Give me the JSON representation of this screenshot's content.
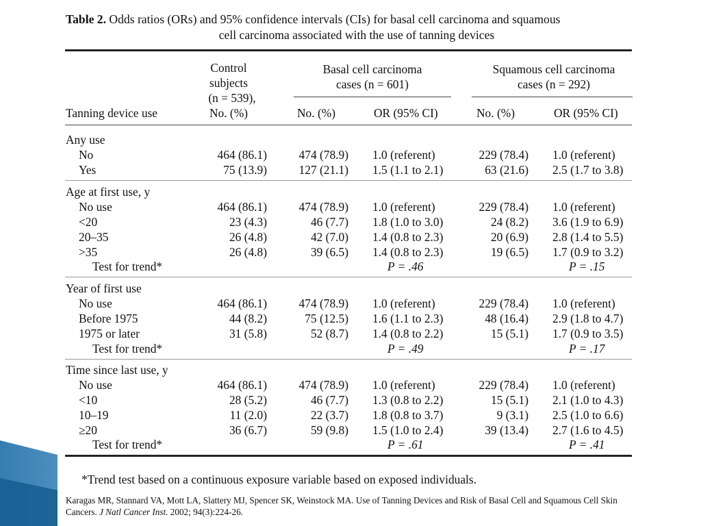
{
  "caption": {
    "label": "Table 2.",
    "line1": "Odds ratios (ORs) and 95% confidence intervals (CIs) for basal cell carcinoma and squamous",
    "line2": "cell carcinoma associated with the use of tanning devices"
  },
  "header": {
    "rowlabel": "Tanning device use",
    "control": [
      "Control",
      "subjects",
      "(n = 539),",
      "No. (%)"
    ],
    "bcc_group": [
      "Basal cell carcinoma",
      "cases (n = 601)"
    ],
    "scc_group": [
      "Squamous cell carcinoma",
      "cases (n = 292)"
    ],
    "bcc_no": "No. (%)",
    "bcc_or": "OR (95% CI)",
    "scc_no": "No. (%)",
    "scc_or": "OR (95% CI)"
  },
  "sections": [
    {
      "title": "Any use",
      "rows": [
        {
          "label": "No",
          "control": "464 (86.1)",
          "bcc_no": "474 (78.9)",
          "bcc_or": "1.0 (referent)",
          "scc_no": "229 (78.4)",
          "scc_or": "1.0 (referent)"
        },
        {
          "label": "Yes",
          "control": "75 (13.9)",
          "bcc_no": "127 (21.1)",
          "bcc_or": "1.5 (1.1 to 2.1)",
          "scc_no": "63 (21.6)",
          "scc_or": "2.5 (1.7 to 3.8)"
        }
      ]
    },
    {
      "title": "Age at first use, y",
      "rows": [
        {
          "label": "No use",
          "control": "464 (86.1)",
          "bcc_no": "474 (78.9)",
          "bcc_or": "1.0 (referent)",
          "scc_no": "229 (78.4)",
          "scc_or": "1.0 (referent)"
        },
        {
          "label": "<20",
          "control": "23 (4.3)",
          "bcc_no": "46 (7.7)",
          "bcc_or": "1.8 (1.0 to 3.0)",
          "scc_no": "24 (8.2)",
          "scc_or": "3.6 (1.9 to 6.9)"
        },
        {
          "label": "20–35",
          "control": "26 (4.8)",
          "bcc_no": "42 (7.0)",
          "bcc_or": "1.4 (0.8 to 2.3)",
          "scc_no": "20 (6.9)",
          "scc_or": "2.8 (1.4 to 5.5)"
        },
        {
          "label": ">35",
          "control": "26 (4.8)",
          "bcc_no": "39 (6.5)",
          "bcc_or": "1.4 (0.8 to 2.3)",
          "scc_no": "19 (6.5)",
          "scc_or": "1.7 (0.9 to 3.2)"
        }
      ],
      "trend": {
        "label": "Test for trend*",
        "bcc_p": "P = .46",
        "scc_p": "P = .15"
      }
    },
    {
      "title": "Year of first use",
      "rows": [
        {
          "label": "No use",
          "control": "464 (86.1)",
          "bcc_no": "474 (78.9)",
          "bcc_or": "1.0 (referent)",
          "scc_no": "229 (78.4)",
          "scc_or": "1.0 (referent)"
        },
        {
          "label": "Before 1975",
          "control": "44 (8.2)",
          "bcc_no": "75 (12.5)",
          "bcc_or": "1.6 (1.1 to 2.3)",
          "scc_no": "48 (16.4)",
          "scc_or": "2.9 (1.8 to 4.7)"
        },
        {
          "label": "1975 or later",
          "control": "31 (5.8)",
          "bcc_no": "52 (8.7)",
          "bcc_or": "1.4 (0.8 to 2.2)",
          "scc_no": "15 (5.1)",
          "scc_or": "1.7 (0.9 to 3.5)"
        }
      ],
      "trend": {
        "label": "Test for trend*",
        "bcc_p": "P = .49",
        "scc_p": "P = .17"
      }
    },
    {
      "title": "Time since last use, y",
      "rows": [
        {
          "label": "No use",
          "control": "464 (86.1)",
          "bcc_no": "474 (78.9)",
          "bcc_or": "1.0 (referent)",
          "scc_no": "229 (78.4)",
          "scc_or": "1.0 (referent)"
        },
        {
          "label": "<10",
          "control": "28 (5.2)",
          "bcc_no": "46 (7.7)",
          "bcc_or": "1.3 (0.8 to 2.2)",
          "scc_no": "15 (5.1)",
          "scc_or": "2.1 (1.0 to 4.3)"
        },
        {
          "label": "10–19",
          "control": "11 (2.0)",
          "bcc_no": "22 (3.7)",
          "bcc_or": "1.8 (0.8 to 3.7)",
          "scc_no": "9 (3.1)",
          "scc_or": "2.5 (1.0 to 6.6)"
        },
        {
          "label": "≥20",
          "control": "36 (6.7)",
          "bcc_no": "59 (9.8)",
          "bcc_or": "1.5 (1.0 to 2.4)",
          "scc_no": "39 (13.4)",
          "scc_or": "2.7 (1.6 to 4.5)"
        }
      ],
      "trend": {
        "label": "Test for trend*",
        "bcc_p": "P = .61",
        "scc_p": "P = .41"
      }
    }
  ],
  "footnote": "*Trend test based on a continuous exposure variable based on exposed individuals.",
  "citation": {
    "authors": "Karagas MR, Stannard VA, Mott LA, Slattery MJ, Spencer SK, Weinstock MA. Use of Tanning Devices and Risk of Basal Cell and Squamous Cell Skin Cancers.",
    "journal": "J Natl Cancer Inst.",
    "details": "2002; 94(3):224-26."
  },
  "colors": {
    "decor_dark": "#1f6fa8",
    "decor_light": "#9fd0ee"
  }
}
